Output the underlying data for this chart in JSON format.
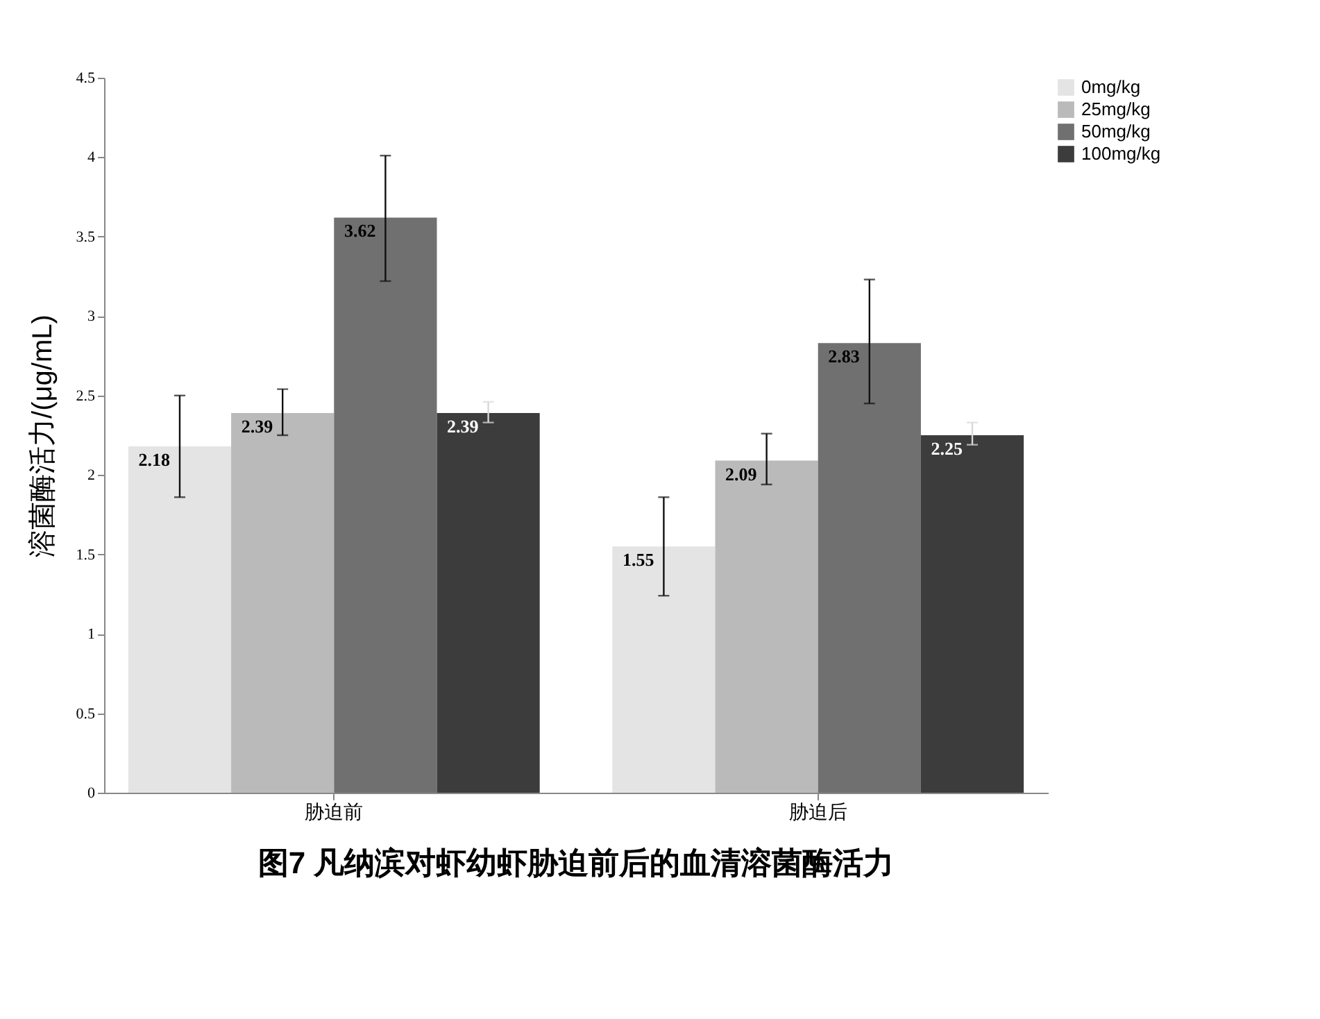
{
  "chart_data": {
    "type": "bar",
    "title": "图7 凡纳滨对虾幼虾胁迫前后的血清溶菌酶活力",
    "ylabel": "溶菌酶活力/(μg/mL)",
    "categories": [
      "胁迫前",
      "胁迫后"
    ],
    "series": [
      {
        "name": "0mg/kg",
        "color": "#e4e4e4",
        "values": [
          2.18,
          1.55
        ],
        "errors": [
          [
            1.86,
            2.5
          ],
          [
            1.24,
            1.86
          ]
        ]
      },
      {
        "name": "25mg/kg",
        "color": "#bababa",
        "values": [
          2.39,
          2.09
        ],
        "errors": [
          [
            2.25,
            2.54
          ],
          [
            1.94,
            2.26
          ]
        ]
      },
      {
        "name": "50mg/kg",
        "color": "#707070",
        "values": [
          3.62,
          2.83
        ],
        "errors": [
          [
            3.22,
            4.01
          ],
          [
            2.45,
            3.23
          ]
        ]
      },
      {
        "name": "100mg/kg",
        "color": "#3c3c3c",
        "values": [
          2.39,
          2.25
        ],
        "errors": [
          [
            2.33,
            2.46
          ],
          [
            2.19,
            2.33
          ]
        ]
      }
    ],
    "ylim": [
      0,
      4.5
    ],
    "yticks": [
      0,
      0.5,
      1,
      1.5,
      2,
      2.5,
      3,
      3.5,
      4,
      4.5
    ],
    "grid": false,
    "legend": "right",
    "data_labels": true
  }
}
